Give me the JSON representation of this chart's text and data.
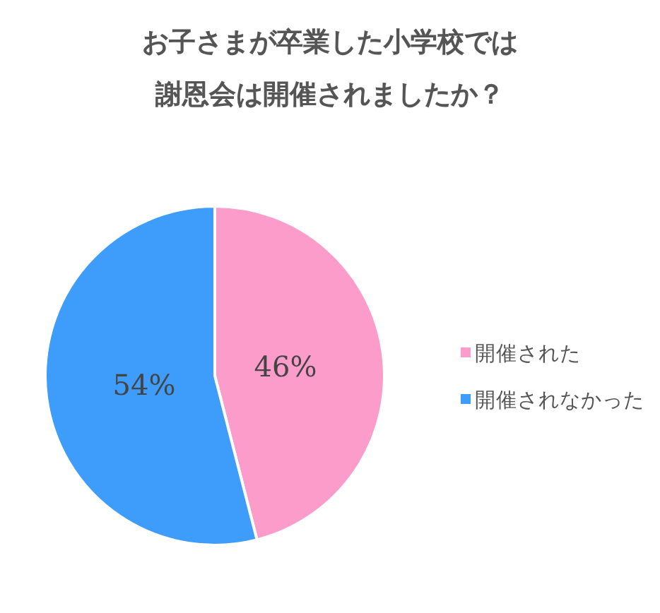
{
  "chart_data": {
    "type": "pie",
    "title": "お子さまが卒業した小学校では謝恩会は開催されましたか？",
    "categories": [
      "開催された",
      "開催されなかった"
    ],
    "values": [
      46,
      54
    ],
    "value_labels": [
      "46%",
      "54%"
    ],
    "colors": [
      "#fc9ccb",
      "#3e9cfa"
    ],
    "legend": "right"
  }
}
